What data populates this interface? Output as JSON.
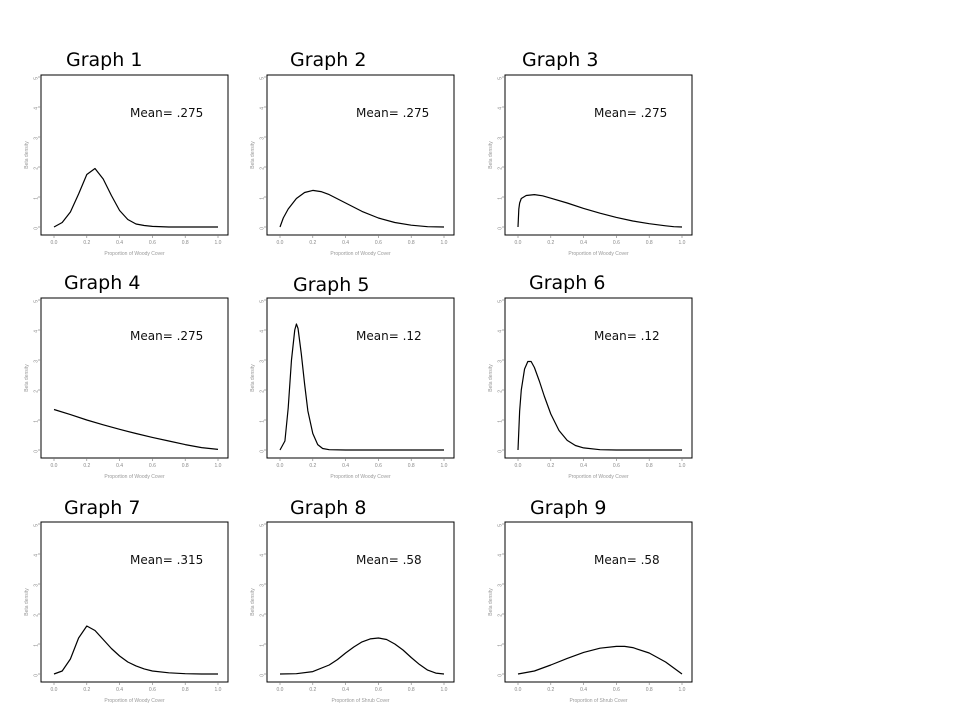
{
  "page": {
    "panels": [
      {
        "title": "Graph 1",
        "mean_label": "Mean= .275"
      },
      {
        "title": "Graph 2",
        "mean_label": "Mean= .275"
      },
      {
        "title": "Graph 3",
        "mean_label": "Mean= .275"
      },
      {
        "title": "Graph 4",
        "mean_label": "Mean= .275"
      },
      {
        "title": "Graph 5",
        "mean_label": "Mean= .12"
      },
      {
        "title": "Graph 6",
        "mean_label": "Mean= .12"
      },
      {
        "title": "Graph 7",
        "mean_label": "Mean= .315"
      },
      {
        "title": "Graph 8",
        "mean_label": "Mean= .58"
      },
      {
        "title": "Graph 9",
        "mean_label": "Mean= .58"
      }
    ]
  },
  "chart_data": [
    {
      "type": "line",
      "title": "Graph 1",
      "annotation": "Mean= .275",
      "xlim": [
        0,
        1
      ],
      "ylim": [
        0,
        5
      ],
      "x_ticks": [
        "0.0",
        "0.2",
        "0.4",
        "0.6",
        "0.8",
        "1.0"
      ],
      "y_ticks": [
        "0",
        "1",
        "2",
        "3",
        "4",
        "5"
      ],
      "xlabel": "Proportion of Woody Cover",
      "ylabel": "Beta density",
      "x": [
        0,
        0.05,
        0.1,
        0.15,
        0.2,
        0.25,
        0.3,
        0.35,
        0.4,
        0.45,
        0.5,
        0.55,
        0.6,
        0.7,
        0.8,
        0.9,
        1.0
      ],
      "y": [
        0,
        0.15,
        0.5,
        1.1,
        1.75,
        1.95,
        1.6,
        1.05,
        0.55,
        0.25,
        0.1,
        0.05,
        0.02,
        0,
        0,
        0,
        0
      ]
    },
    {
      "type": "line",
      "title": "Graph 2",
      "annotation": "Mean= .275",
      "xlim": [
        0,
        1
      ],
      "ylim": [
        0,
        5
      ],
      "x_ticks": [
        "0.0",
        "0.2",
        "0.4",
        "0.6",
        "0.8",
        "1.0"
      ],
      "y_ticks": [
        "0",
        "1",
        "2",
        "3",
        "4",
        "5"
      ],
      "xlabel": "Proportion of Woody Cover",
      "ylabel": "Beta density",
      "x": [
        0,
        0.02,
        0.05,
        0.1,
        0.15,
        0.2,
        0.25,
        0.3,
        0.4,
        0.5,
        0.6,
        0.7,
        0.8,
        0.9,
        1.0
      ],
      "y": [
        0,
        0.3,
        0.6,
        0.95,
        1.15,
        1.22,
        1.18,
        1.08,
        0.8,
        0.52,
        0.3,
        0.15,
        0.06,
        0.01,
        0
      ]
    },
    {
      "type": "line",
      "title": "Graph 3",
      "annotation": "Mean= .275",
      "xlim": [
        0,
        1
      ],
      "ylim": [
        0,
        5
      ],
      "x_ticks": [
        "0.0",
        "0.2",
        "0.4",
        "0.6",
        "0.8",
        "1.0"
      ],
      "y_ticks": [
        "0",
        "1",
        "2",
        "3",
        "4",
        "5"
      ],
      "xlabel": "Proportion of Woody Cover",
      "ylabel": "Beta density",
      "x": [
        0,
        0.005,
        0.01,
        0.02,
        0.05,
        0.1,
        0.15,
        0.2,
        0.3,
        0.4,
        0.5,
        0.6,
        0.7,
        0.8,
        0.9,
        0.95,
        1.0
      ],
      "y": [
        0,
        0.6,
        0.8,
        0.95,
        1.05,
        1.08,
        1.04,
        0.96,
        0.8,
        0.62,
        0.46,
        0.32,
        0.2,
        0.11,
        0.04,
        0.01,
        0
      ]
    },
    {
      "type": "line",
      "title": "Graph 4",
      "annotation": "Mean= .275",
      "xlim": [
        0,
        1
      ],
      "ylim": [
        0,
        5
      ],
      "x_ticks": [
        "0.0",
        "0.2",
        "0.4",
        "0.6",
        "0.8",
        "1.0"
      ],
      "y_ticks": [
        "0",
        "1",
        "2",
        "3",
        "4",
        "5"
      ],
      "xlabel": "Proportion of Woody Cover",
      "ylabel": "Beta density",
      "x": [
        0,
        0.1,
        0.2,
        0.3,
        0.4,
        0.5,
        0.6,
        0.7,
        0.8,
        0.9,
        1.0
      ],
      "y": [
        1.35,
        1.18,
        1.0,
        0.84,
        0.69,
        0.55,
        0.42,
        0.3,
        0.18,
        0.08,
        0.02
      ]
    },
    {
      "type": "line",
      "title": "Graph 5",
      "annotation": "Mean= .12",
      "xlim": [
        0,
        1
      ],
      "ylim": [
        0,
        5
      ],
      "x_ticks": [
        "0.0",
        "0.2",
        "0.4",
        "0.6",
        "0.8",
        "1.0"
      ],
      "y_ticks": [
        "0",
        "1",
        "2",
        "3",
        "4",
        "5"
      ],
      "xlabel": "Proportion of Woody Cover",
      "ylabel": "Beta density",
      "x": [
        0,
        0.03,
        0.05,
        0.07,
        0.09,
        0.1,
        0.11,
        0.13,
        0.15,
        0.17,
        0.2,
        0.23,
        0.26,
        0.3,
        0.4,
        0.6,
        0.8,
        1.0
      ],
      "y": [
        0,
        0.3,
        1.4,
        3.0,
        4.0,
        4.2,
        4.05,
        3.2,
        2.2,
        1.3,
        0.55,
        0.18,
        0.05,
        0.01,
        0,
        0,
        0,
        0
      ]
    },
    {
      "type": "line",
      "title": "Graph 6",
      "annotation": "Mean= .12",
      "xlim": [
        0,
        1
      ],
      "ylim": [
        0,
        5
      ],
      "x_ticks": [
        "0.0",
        "0.2",
        "0.4",
        "0.6",
        "0.8",
        "1.0"
      ],
      "y_ticks": [
        "0",
        "1",
        "2",
        "3",
        "4",
        "5"
      ],
      "xlabel": "Proportion of Woody Cover",
      "ylabel": "Beta density",
      "x": [
        0,
        0.01,
        0.02,
        0.04,
        0.06,
        0.08,
        0.1,
        0.13,
        0.16,
        0.2,
        0.25,
        0.3,
        0.35,
        0.4,
        0.5,
        0.6,
        0.8,
        1.0
      ],
      "y": [
        0,
        1.3,
        2.0,
        2.7,
        2.95,
        2.95,
        2.75,
        2.3,
        1.8,
        1.2,
        0.65,
        0.32,
        0.15,
        0.07,
        0.01,
        0,
        0,
        0
      ]
    },
    {
      "type": "line",
      "title": "Graph 7",
      "annotation": "Mean= .315",
      "xlim": [
        0,
        1
      ],
      "ylim": [
        0,
        5
      ],
      "x_ticks": [
        "0.0",
        "0.2",
        "0.4",
        "0.6",
        "0.8",
        "1.0"
      ],
      "y_ticks": [
        "0",
        "1",
        "2",
        "3",
        "4",
        "5"
      ],
      "xlabel": "Proportion of Woody Cover",
      "ylabel": "Beta density",
      "x": [
        0,
        0.05,
        0.1,
        0.15,
        0.2,
        0.25,
        0.3,
        0.35,
        0.4,
        0.45,
        0.5,
        0.55,
        0.6,
        0.7,
        0.8,
        0.9,
        1.0
      ],
      "y": [
        0,
        0.1,
        0.5,
        1.2,
        1.6,
        1.45,
        1.15,
        0.85,
        0.6,
        0.4,
        0.27,
        0.17,
        0.1,
        0.04,
        0.01,
        0,
        0
      ]
    },
    {
      "type": "line",
      "title": "Graph 8",
      "annotation": "Mean= .58",
      "xlim": [
        0,
        1
      ],
      "ylim": [
        0,
        5
      ],
      "x_ticks": [
        "0.0",
        "0.2",
        "0.4",
        "0.6",
        "0.8",
        "1.0"
      ],
      "y_ticks": [
        "0",
        "1",
        "2",
        "3",
        "4",
        "5"
      ],
      "xlabel": "Proportion of Shrub Cover",
      "ylabel": "Beta density",
      "x": [
        0,
        0.1,
        0.2,
        0.3,
        0.35,
        0.4,
        0.45,
        0.5,
        0.55,
        0.6,
        0.65,
        0.7,
        0.75,
        0.8,
        0.85,
        0.9,
        0.95,
        1.0
      ],
      "y": [
        0,
        0.01,
        0.08,
        0.3,
        0.48,
        0.7,
        0.9,
        1.07,
        1.17,
        1.2,
        1.15,
        1.0,
        0.8,
        0.55,
        0.32,
        0.13,
        0.03,
        0
      ]
    },
    {
      "type": "line",
      "title": "Graph 9",
      "annotation": "Mean= .58",
      "xlim": [
        0,
        1
      ],
      "ylim": [
        0,
        5
      ],
      "x_ticks": [
        "0.0",
        "0.2",
        "0.4",
        "0.6",
        "0.8",
        "1.0"
      ],
      "y_ticks": [
        "0",
        "1",
        "2",
        "3",
        "4",
        "5"
      ],
      "xlabel": "Proportion of Shrub Cover",
      "ylabel": "Beta density",
      "x": [
        0,
        0.1,
        0.2,
        0.3,
        0.4,
        0.5,
        0.6,
        0.65,
        0.7,
        0.8,
        0.9,
        1.0
      ],
      "y": [
        0,
        0.1,
        0.3,
        0.52,
        0.72,
        0.86,
        0.92,
        0.92,
        0.88,
        0.7,
        0.4,
        0
      ]
    }
  ]
}
